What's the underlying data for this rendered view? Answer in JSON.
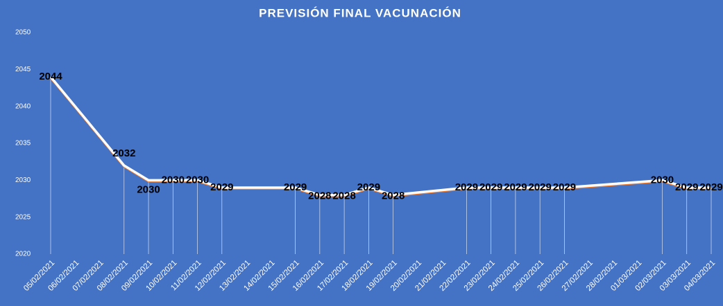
{
  "chart_data": {
    "type": "line",
    "title": "PREVISIÓN FINAL VACUNACIÓN",
    "x": [
      "05/02/2021",
      "08/02/2021",
      "09/02/2021",
      "10/02/2021",
      "11/02/2021",
      "12/02/2021",
      "15/02/2021",
      "16/02/2021",
      "17/02/2021",
      "18/02/2021",
      "19/02/2021",
      "22/02/2021",
      "23/02/2021",
      "24/02/2021",
      "25/02/2021",
      "26/02/2021",
      "02/03/2021",
      "03/03/2021",
      "04/03/2021"
    ],
    "values": [
      2044,
      2032,
      2030,
      2030,
      2030,
      2029,
      2029,
      2028,
      2028,
      2029,
      2028,
      2029,
      2029,
      2029,
      2029,
      2029,
      2030,
      2029,
      2029
    ],
    "color": "#ffffff",
    "xticks": [
      "05/02/2021",
      "06/02/2021",
      "07/02/2021",
      "08/02/2021",
      "09/02/2021",
      "10/02/2021",
      "11/02/2021",
      "12/02/2021",
      "13/02/2021",
      "14/02/2021",
      "15/02/2021",
      "16/02/2021",
      "17/02/2021",
      "18/02/2021",
      "19/02/2021",
      "20/02/2021",
      "21/02/2021",
      "22/02/2021",
      "23/02/2021",
      "24/02/2021",
      "25/02/2021",
      "26/02/2021",
      "27/02/2021",
      "28/02/2021",
      "01/03/2021",
      "02/03/2021",
      "03/03/2021",
      "04/03/2021"
    ],
    "ylim": [
      2020,
      2050
    ],
    "yticks": [
      2020,
      2025,
      2030,
      2035,
      2040,
      2045,
      2050
    ]
  }
}
